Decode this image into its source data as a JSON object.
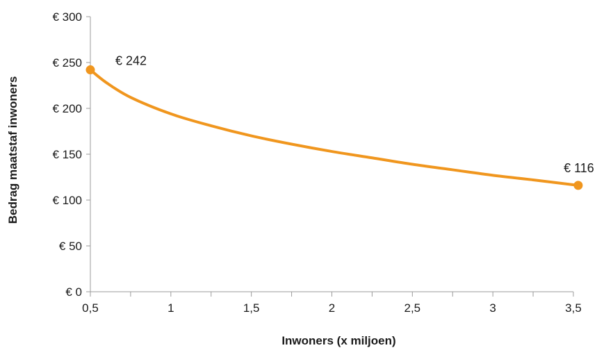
{
  "chart_data": {
    "type": "line",
    "title": "",
    "xlabel": "Inwoners (x miljoen)",
    "ylabel": "Bedrag maatstaf inwoners",
    "xlim": [
      0.5,
      3.5
    ],
    "ylim": [
      0,
      300
    ],
    "x_ticks": [
      0.5,
      1,
      1.5,
      2,
      2.5,
      3,
      3.5
    ],
    "x_tick_labels": [
      "0,5",
      "1",
      "1,5",
      "2",
      "2,5",
      "3",
      "3,5"
    ],
    "y_ticks": [
      0,
      50,
      100,
      150,
      200,
      250,
      300
    ],
    "y_tick_labels": [
      "€ 0",
      "€ 50",
      "€ 100",
      "€ 150",
      "€ 200",
      "€ 250",
      "€ 300"
    ],
    "grid": false,
    "color": "#f0961e",
    "series": [
      {
        "x": [
          0.5,
          0.6,
          0.75,
          1.0,
          1.25,
          1.5,
          1.75,
          2.0,
          2.25,
          2.5,
          2.75,
          3.0,
          3.25,
          3.53
        ],
        "y": [
          242,
          228,
          212,
          194,
          181,
          170,
          161,
          153,
          146,
          139,
          133,
          127,
          122,
          116
        ]
      }
    ],
    "annotations": [
      {
        "x": 0.5,
        "y": 242,
        "text": "€ 242"
      },
      {
        "x": 3.53,
        "y": 116,
        "text": "€ 116"
      }
    ]
  }
}
